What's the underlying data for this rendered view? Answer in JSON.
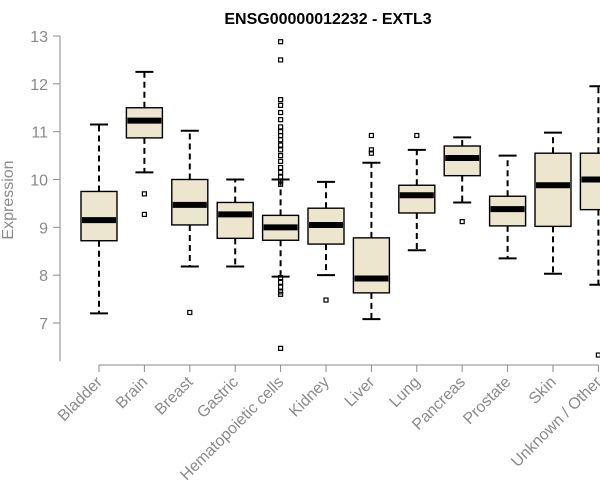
{
  "chart_data": {
    "type": "boxplot",
    "title": "ENSG00000012232 - EXTL3",
    "xlabel": "",
    "ylabel": "Expression",
    "ylim": [
      6.2,
      13.0
    ],
    "yticks": [
      7,
      8,
      9,
      10,
      11,
      12,
      13
    ],
    "box_color": "#ede6cf",
    "categories": [
      "Bladder",
      "Brain",
      "Breast",
      "Gastric",
      "Hematopoietic cells",
      "Kidney",
      "Liver",
      "Lung",
      "Pancreas",
      "Prostate",
      "Skin",
      "Unknown / Other"
    ],
    "boxes": [
      {
        "name": "Bladder",
        "whisker_low": 7.2,
        "q1": 8.72,
        "median": 9.15,
        "q3": 9.75,
        "whisker_high": 11.15,
        "outliers": []
      },
      {
        "name": "Brain",
        "whisker_low": 10.15,
        "q1": 10.87,
        "median": 11.23,
        "q3": 11.5,
        "whisker_high": 12.25,
        "outliers": [
          9.7,
          9.27
        ]
      },
      {
        "name": "Breast",
        "whisker_low": 8.18,
        "q1": 9.05,
        "median": 9.47,
        "q3": 10.0,
        "whisker_high": 11.02,
        "outliers": [
          7.22
        ]
      },
      {
        "name": "Gastric",
        "whisker_low": 8.18,
        "q1": 8.77,
        "median": 9.27,
        "q3": 9.52,
        "whisker_high": 10.0,
        "outliers": []
      },
      {
        "name": "Hematopoietic cells",
        "whisker_low": 7.97,
        "q1": 8.73,
        "median": 9.0,
        "q3": 9.25,
        "whisker_high": 10.0,
        "outliers": [
          12.88,
          12.5,
          11.67,
          11.55,
          11.4,
          11.25,
          11.1,
          11.0,
          10.92,
          10.83,
          10.72,
          10.62,
          10.5,
          10.38,
          10.25,
          10.15,
          10.05,
          9.97,
          9.9,
          7.95,
          7.85,
          7.75,
          7.65,
          7.6,
          6.47
        ]
      },
      {
        "name": "Kidney",
        "whisker_low": 8.0,
        "q1": 8.65,
        "median": 9.05,
        "q3": 9.4,
        "whisker_high": 9.95,
        "outliers": [
          7.48
        ]
      },
      {
        "name": "Liver",
        "whisker_low": 7.08,
        "q1": 7.63,
        "median": 7.93,
        "q3": 8.78,
        "whisker_high": 10.35,
        "outliers": [
          10.92,
          10.62,
          10.55
        ]
      },
      {
        "name": "Lung",
        "whisker_low": 8.52,
        "q1": 9.3,
        "median": 9.67,
        "q3": 9.88,
        "whisker_high": 10.62,
        "outliers": [
          10.92
        ]
      },
      {
        "name": "Pancreas",
        "whisker_low": 9.52,
        "q1": 10.08,
        "median": 10.45,
        "q3": 10.7,
        "whisker_high": 10.88,
        "outliers": [
          9.12
        ]
      },
      {
        "name": "Prostate",
        "whisker_low": 8.35,
        "q1": 9.03,
        "median": 9.38,
        "q3": 9.65,
        "whisker_high": 10.5,
        "outliers": []
      },
      {
        "name": "Skin",
        "whisker_low": 8.03,
        "q1": 9.02,
        "median": 9.88,
        "q3": 10.55,
        "whisker_high": 10.98,
        "outliers": []
      },
      {
        "name": "Unknown / Other",
        "whisker_low": 7.8,
        "q1": 9.37,
        "median": 10.0,
        "q3": 10.55,
        "whisker_high": 11.95,
        "outliers": [
          6.33
        ]
      }
    ]
  }
}
